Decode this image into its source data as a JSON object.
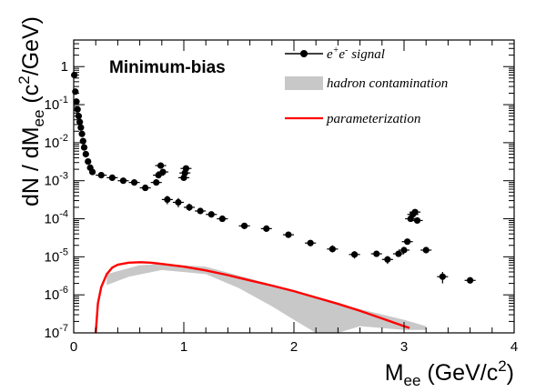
{
  "chart_data": {
    "type": "scatter",
    "x_axis": {
      "label_main": "M",
      "label_sub": "ee",
      "label_rest": " (GeV/c",
      "label_sup": "2",
      "label_end": ")",
      "range": [
        0,
        4
      ],
      "ticks": [
        0,
        1,
        2,
        3,
        4
      ],
      "tick_labels": [
        "0",
        "1",
        "2",
        "3",
        "4"
      ]
    },
    "y_axis": {
      "label_main": "dN / dM",
      "label_sub": "ee",
      "label_rest": " (c",
      "label_sup": "2",
      "label_end": "/GeV)",
      "scale": "log",
      "range": [
        1e-07,
        5
      ],
      "ticks": [
        1e-07,
        1e-06,
        1e-05,
        0.0001,
        0.001,
        0.01,
        0.1,
        1
      ],
      "tick_labels": [
        {
          "base": "10",
          "exp": "-7"
        },
        {
          "base": "10",
          "exp": "-6"
        },
        {
          "base": "10",
          "exp": "-5"
        },
        {
          "base": "10",
          "exp": "-4"
        },
        {
          "base": "10",
          "exp": "-3"
        },
        {
          "base": "10",
          "exp": "-2"
        },
        {
          "base": "10",
          "exp": "-1"
        },
        {
          "base": "1",
          "exp": ""
        }
      ]
    },
    "annotation": "Minimum-bias",
    "legend": {
      "placement": "top-right",
      "entries": [
        {
          "text_parts": [
            "e",
            "+",
            "e",
            "-",
            " signal"
          ],
          "style": "marker-line"
        },
        {
          "text": "hadron contamination",
          "style": "band"
        },
        {
          "text": "parameterization",
          "style": "line"
        }
      ]
    },
    "colors": {
      "signal": "#000000",
      "band": "#c8c8c8",
      "parameterization": "#ff0000"
    },
    "series": [
      {
        "kind": "points",
        "x_err": 0.05,
        "points": [
          {
            "x": 0.005,
            "y": 0.6,
            "ylo": 0.6,
            "yhi": 0.6
          },
          {
            "x": 0.015,
            "y": 0.22,
            "ylo": 0.22,
            "yhi": 0.22
          },
          {
            "x": 0.025,
            "y": 0.12,
            "ylo": 0.12,
            "yhi": 0.12
          },
          {
            "x": 0.035,
            "y": 0.075,
            "ylo": 0.075,
            "yhi": 0.075
          },
          {
            "x": 0.045,
            "y": 0.05,
            "ylo": 0.05,
            "yhi": 0.05
          },
          {
            "x": 0.055,
            "y": 0.035,
            "ylo": 0.035,
            "yhi": 0.035
          },
          {
            "x": 0.065,
            "y": 0.025,
            "ylo": 0.025,
            "yhi": 0.025
          },
          {
            "x": 0.075,
            "y": 0.017,
            "ylo": 0.017,
            "yhi": 0.017
          },
          {
            "x": 0.085,
            "y": 0.011,
            "ylo": 0.011,
            "yhi": 0.011
          },
          {
            "x": 0.095,
            "y": 0.0075,
            "ylo": 0.0075,
            "yhi": 0.0075
          },
          {
            "x": 0.11,
            "y": 0.005,
            "ylo": 0.005,
            "yhi": 0.005
          },
          {
            "x": 0.13,
            "y": 0.0032,
            "ylo": 0.0032,
            "yhi": 0.0032
          },
          {
            "x": 0.15,
            "y": 0.0022,
            "ylo": 0.0022,
            "yhi": 0.0022
          },
          {
            "x": 0.17,
            "y": 0.0017,
            "ylo": 0.0017,
            "yhi": 0.0017
          },
          {
            "x": 0.25,
            "y": 0.0014,
            "ylo": 0.0013,
            "yhi": 0.0015
          },
          {
            "x": 0.35,
            "y": 0.0012,
            "ylo": 0.0011,
            "yhi": 0.0013
          },
          {
            "x": 0.45,
            "y": 0.001,
            "ylo": 0.0009,
            "yhi": 0.0011
          },
          {
            "x": 0.55,
            "y": 0.0009,
            "ylo": 0.0008,
            "yhi": 0.001
          },
          {
            "x": 0.65,
            "y": 0.00065,
            "ylo": 0.00056,
            "yhi": 0.00075
          },
          {
            "x": 0.75,
            "y": 0.0009,
            "ylo": 0.0008,
            "yhi": 0.001
          },
          {
            "x": 0.77,
            "y": 0.0014,
            "ylo": 0.0013,
            "yhi": 0.0015
          },
          {
            "x": 0.79,
            "y": 0.0025,
            "ylo": 0.0023,
            "yhi": 0.0027
          },
          {
            "x": 0.81,
            "y": 0.0017,
            "ylo": 0.0016,
            "yhi": 0.0018
          },
          {
            "x": 0.85,
            "y": 0.00032,
            "ylo": 0.00024,
            "yhi": 0.0004
          },
          {
            "x": 0.95,
            "y": 0.00027,
            "ylo": 0.0002,
            "yhi": 0.00035
          },
          {
            "x": 1.0,
            "y": 0.0012,
            "ylo": 0.0011,
            "yhi": 0.0013
          },
          {
            "x": 1.01,
            "y": 0.0016,
            "ylo": 0.0015,
            "yhi": 0.0017
          },
          {
            "x": 1.02,
            "y": 0.0021,
            "ylo": 0.002,
            "yhi": 0.0022
          },
          {
            "x": 1.05,
            "y": 0.0002,
            "ylo": 0.00016,
            "yhi": 0.00025
          },
          {
            "x": 1.15,
            "y": 0.00016,
            "ylo": 0.00014,
            "yhi": 0.00018
          },
          {
            "x": 1.25,
            "y": 0.00013,
            "ylo": 0.00012,
            "yhi": 0.00014
          },
          {
            "x": 1.35,
            "y": 0.0001,
            "ylo": 9.2e-05,
            "yhi": 0.00011
          },
          {
            "x": 1.55,
            "y": 6.5e-05,
            "ylo": 6e-05,
            "yhi": 7e-05
          },
          {
            "x": 1.75,
            "y": 5.5e-05,
            "ylo": 5e-05,
            "yhi": 6e-05
          },
          {
            "x": 1.95,
            "y": 3.8e-05,
            "ylo": 3.4e-05,
            "yhi": 4.2e-05
          },
          {
            "x": 2.15,
            "y": 2.3e-05,
            "ylo": 1.9e-05,
            "yhi": 2.7e-05
          },
          {
            "x": 2.35,
            "y": 1.6e-05,
            "ylo": 1.3e-05,
            "yhi": 2e-05
          },
          {
            "x": 2.55,
            "y": 1.15e-05,
            "ylo": 9e-06,
            "yhi": 1.4e-05
          },
          {
            "x": 2.75,
            "y": 1.2e-05,
            "ylo": 1e-05,
            "yhi": 1.4e-05
          },
          {
            "x": 2.85,
            "y": 8.5e-06,
            "ylo": 6.5e-06,
            "yhi": 1.05e-05
          },
          {
            "x": 2.95,
            "y": 1.2e-05,
            "ylo": 1e-05,
            "yhi": 1.4e-05
          },
          {
            "x": 3.0,
            "y": 1.5e-05,
            "ylo": 1.3e-05,
            "yhi": 1.7e-05
          },
          {
            "x": 3.03,
            "y": 2.5e-05,
            "ylo": 2.2e-05,
            "yhi": 2.8e-05
          },
          {
            "x": 3.06,
            "y": 0.0001,
            "ylo": 9e-05,
            "yhi": 0.00011
          },
          {
            "x": 3.08,
            "y": 0.00013,
            "ylo": 0.00012,
            "yhi": 0.00014
          },
          {
            "x": 3.1,
            "y": 0.00015,
            "ylo": 0.00014,
            "yhi": 0.00016
          },
          {
            "x": 3.12,
            "y": 9e-05,
            "ylo": 8e-05,
            "yhi": 0.0001
          },
          {
            "x": 3.2,
            "y": 1.5e-05,
            "ylo": 1.3e-05,
            "yhi": 1.7e-05
          },
          {
            "x": 3.35,
            "y": 3e-06,
            "ylo": 2e-06,
            "yhi": 4e-06
          },
          {
            "x": 3.6,
            "y": 2.4e-06,
            "ylo": 2.1e-06,
            "yhi": 2.7e-06
          }
        ]
      },
      {
        "kind": "band",
        "upper": [
          [
            0.3,
            3.5e-06
          ],
          [
            0.6,
            6e-06
          ],
          [
            0.8,
            6.5e-06
          ],
          [
            1.2,
            5.5e-06
          ],
          [
            1.5,
            3.2e-06
          ],
          [
            2.0,
            1.3e-06
          ],
          [
            2.3,
            7.5e-07
          ],
          [
            2.6,
            4.2e-07
          ],
          [
            3.0,
            2.2e-07
          ],
          [
            3.2,
            1.5e-07
          ]
        ],
        "lower": [
          [
            0.3,
            1.8e-06
          ],
          [
            0.5,
            3e-06
          ],
          [
            0.8,
            4.5e-06
          ],
          [
            1.2,
            3.5e-06
          ],
          [
            1.5,
            1.5e-06
          ],
          [
            1.8,
            5e-07
          ],
          [
            2.0,
            2.2e-07
          ],
          [
            2.2,
            1e-07
          ],
          [
            2.4,
            1e-07
          ],
          [
            2.6,
            1.5e-07
          ],
          [
            3.0,
            1.2e-07
          ],
          [
            3.2,
            1.2e-07
          ]
        ]
      },
      {
        "kind": "line",
        "points": [
          [
            0.2,
            1e-07
          ],
          [
            0.22,
            6e-07
          ],
          [
            0.25,
            1.6e-06
          ],
          [
            0.3,
            3.5e-06
          ],
          [
            0.35,
            5.2e-06
          ],
          [
            0.4,
            6.2e-06
          ],
          [
            0.5,
            7e-06
          ],
          [
            0.6,
            7.2e-06
          ],
          [
            0.7,
            7e-06
          ],
          [
            0.8,
            6.5e-06
          ],
          [
            1.0,
            5.5e-06
          ],
          [
            1.2,
            4.4e-06
          ],
          [
            1.4,
            3.3e-06
          ],
          [
            1.6,
            2.4e-06
          ],
          [
            1.8,
            1.75e-06
          ],
          [
            2.0,
            1.25e-06
          ],
          [
            2.2,
            8.5e-07
          ],
          [
            2.4,
            5.8e-07
          ],
          [
            2.6,
            3.8e-07
          ],
          [
            2.8,
            2.4e-07
          ],
          [
            3.0,
            1.5e-07
          ],
          [
            3.05,
            1.35e-07
          ]
        ]
      }
    ]
  }
}
